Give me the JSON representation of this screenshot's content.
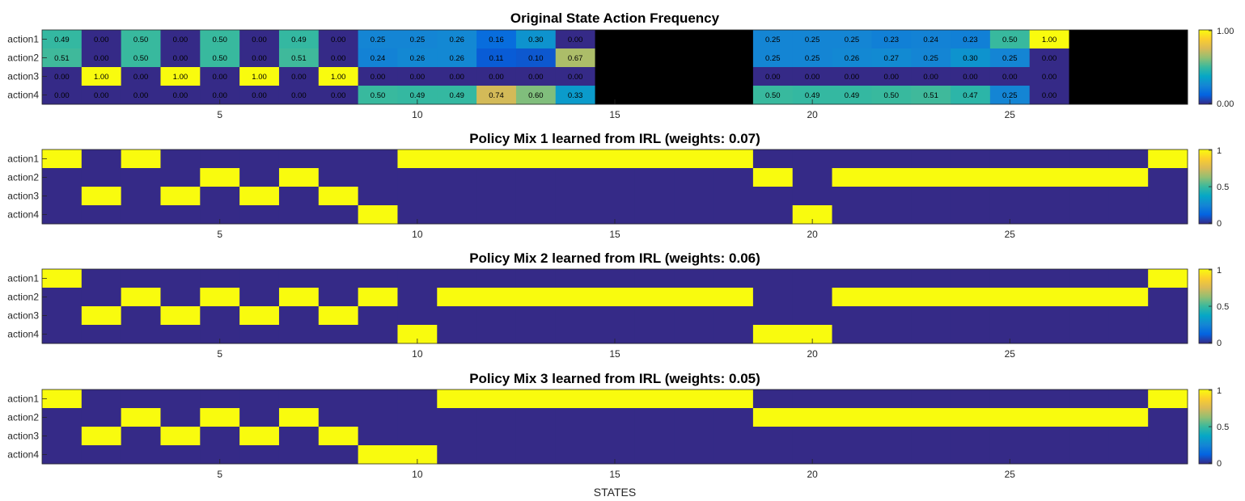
{
  "colors": {
    "low": "#352a87",
    "high": "#f9fb0e",
    "missing": "#000000",
    "parula_stops": [
      "#352a87",
      "#0363e1",
      "#1485d4",
      "#06a7c6",
      "#38b99e",
      "#92bf73",
      "#d9ba56",
      "#fcce2e",
      "#f9fb0e"
    ]
  },
  "chart_data": [
    {
      "type": "heatmap",
      "title": "Original State Action Frequency",
      "rows": [
        "action1",
        "action2",
        "action3",
        "action4"
      ],
      "x_ticks": [
        5,
        10,
        15,
        20,
        25
      ],
      "colorbar_ticks": [
        "1.00",
        "0.00"
      ],
      "show_values": true,
      "values": [
        [
          0.49,
          0,
          0.5,
          0,
          0.5,
          0,
          0.49,
          0,
          0.25,
          0.25,
          0.26,
          0.16,
          0.3,
          0,
          null,
          null,
          null,
          null,
          0.25,
          0.25,
          0.25,
          0.23,
          0.24,
          0.23,
          0.5,
          1.0,
          null,
          null,
          null
        ],
        [
          0.51,
          0,
          0.5,
          0,
          0.5,
          0,
          0.51,
          0,
          0.24,
          0.26,
          0.26,
          0.11,
          0.1,
          0.67,
          null,
          null,
          null,
          null,
          0.25,
          0.25,
          0.26,
          0.27,
          0.25,
          0.3,
          0.25,
          0,
          null,
          null,
          null
        ],
        [
          0,
          1.0,
          0,
          1.0,
          0,
          1.0,
          0,
          1.0,
          0,
          0,
          0,
          0,
          0,
          0,
          null,
          null,
          null,
          null,
          0,
          0,
          0,
          0,
          0,
          0,
          0,
          0,
          null,
          null,
          null
        ],
        [
          0,
          0,
          0,
          0,
          0,
          0,
          0,
          0,
          0.5,
          0.49,
          0.49,
          0.74,
          0.6,
          0.33,
          null,
          null,
          null,
          null,
          0.5,
          0.49,
          0.49,
          0.5,
          0.51,
          0.47,
          0.25,
          0,
          null,
          null,
          null
        ]
      ]
    },
    {
      "type": "heatmap",
      "title": "Policy Mix 1 learned from IRL (weights: 0.07)",
      "rows": [
        "action1",
        "action2",
        "action3",
        "action4"
      ],
      "x_ticks": [
        5,
        10,
        15,
        20,
        25
      ],
      "colorbar_ticks": [
        "1",
        "0.5",
        "0"
      ],
      "show_values": false,
      "values": [
        [
          1,
          0,
          1,
          0,
          0,
          0,
          0,
          0,
          0,
          1,
          1,
          1,
          1,
          1,
          1,
          1,
          1,
          1,
          0,
          0,
          0,
          0,
          0,
          0,
          0,
          0,
          0,
          0,
          1
        ],
        [
          0,
          0,
          0,
          0,
          1,
          0,
          1,
          0,
          0,
          0,
          0,
          0,
          0,
          0,
          0,
          0,
          0,
          0,
          1,
          0,
          1,
          1,
          1,
          1,
          1,
          1,
          1,
          1,
          0
        ],
        [
          0,
          1,
          0,
          1,
          0,
          1,
          0,
          1,
          0,
          0,
          0,
          0,
          0,
          0,
          0,
          0,
          0,
          0,
          0,
          0,
          0,
          0,
          0,
          0,
          0,
          0,
          0,
          0,
          0
        ],
        [
          0,
          0,
          0,
          0,
          0,
          0,
          0,
          0,
          1,
          0,
          0,
          0,
          0,
          0,
          0,
          0,
          0,
          0,
          0,
          1,
          0,
          0,
          0,
          0,
          0,
          0,
          0,
          0,
          0
        ]
      ]
    },
    {
      "type": "heatmap",
      "title": "Policy Mix 2 learned from IRL (weights: 0.06)",
      "rows": [
        "action1",
        "action2",
        "action3",
        "action4"
      ],
      "x_ticks": [
        5,
        10,
        15,
        20,
        25
      ],
      "colorbar_ticks": [
        "1",
        "0.5",
        "0"
      ],
      "show_values": false,
      "values": [
        [
          1,
          0,
          0,
          0,
          0,
          0,
          0,
          0,
          0,
          0,
          0,
          0,
          0,
          0,
          0,
          0,
          0,
          0,
          0,
          0,
          0,
          0,
          0,
          0,
          0,
          0,
          0,
          0,
          1
        ],
        [
          0,
          0,
          1,
          0,
          1,
          0,
          1,
          0,
          1,
          0,
          1,
          1,
          1,
          1,
          1,
          1,
          1,
          1,
          0,
          0,
          1,
          1,
          1,
          1,
          1,
          1,
          1,
          1,
          0
        ],
        [
          0,
          1,
          0,
          1,
          0,
          1,
          0,
          1,
          0,
          0,
          0,
          0,
          0,
          0,
          0,
          0,
          0,
          0,
          0,
          0,
          0,
          0,
          0,
          0,
          0,
          0,
          0,
          0,
          0
        ],
        [
          0,
          0,
          0,
          0,
          0,
          0,
          0,
          0,
          0,
          1,
          0,
          0,
          0,
          0,
          0,
          0,
          0,
          0,
          1,
          1,
          0,
          0,
          0,
          0,
          0,
          0,
          0,
          0,
          0
        ]
      ]
    },
    {
      "type": "heatmap",
      "title": "Policy Mix 3 learned from IRL (weights: 0.05)",
      "rows": [
        "action1",
        "action2",
        "action3",
        "action4"
      ],
      "x_ticks": [
        5,
        10,
        15,
        20,
        25
      ],
      "colorbar_ticks": [
        "1",
        "0.5",
        "0"
      ],
      "show_values": false,
      "xlabel": "STATES",
      "values": [
        [
          1,
          0,
          0,
          0,
          0,
          0,
          0,
          0,
          0,
          0,
          1,
          1,
          1,
          1,
          1,
          1,
          1,
          1,
          0,
          0,
          0,
          0,
          0,
          0,
          0,
          0,
          0,
          0,
          1
        ],
        [
          0,
          0,
          1,
          0,
          1,
          0,
          1,
          0,
          0,
          0,
          0,
          0,
          0,
          0,
          0,
          0,
          0,
          0,
          1,
          1,
          1,
          1,
          1,
          1,
          1,
          1,
          1,
          1,
          0
        ],
        [
          0,
          1,
          0,
          1,
          0,
          1,
          0,
          1,
          0,
          0,
          0,
          0,
          0,
          0,
          0,
          0,
          0,
          0,
          0,
          0,
          0,
          0,
          0,
          0,
          0,
          0,
          0,
          0,
          0
        ],
        [
          0,
          0,
          0,
          0,
          0,
          0,
          0,
          0,
          1,
          1,
          0,
          0,
          0,
          0,
          0,
          0,
          0,
          0,
          0,
          0,
          0,
          0,
          0,
          0,
          0,
          0,
          0,
          0,
          0
        ]
      ]
    }
  ]
}
